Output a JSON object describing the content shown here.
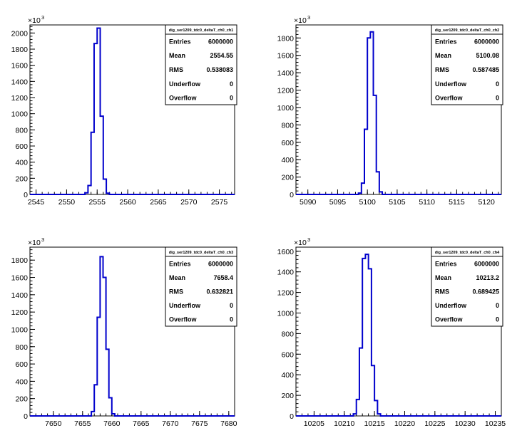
{
  "page_title": "",
  "chart_data": [
    {
      "type": "histogram",
      "title": "dig_ser1209_tdc0_deltaT_ch0_ch1",
      "xlim": [
        2544,
        2577.5
      ],
      "ylim": [
        0,
        2100
      ],
      "y_multiplier_label": "×10",
      "y_multiplier_exp": "3",
      "xticks": [
        2545,
        2550,
        2555,
        2560,
        2565,
        2570,
        2575
      ],
      "yticks": [
        0,
        200,
        400,
        600,
        800,
        1000,
        1200,
        1400,
        1600,
        1800,
        2000
      ],
      "bin_width": 0.5,
      "bins": [
        {
          "x": 2553.0,
          "y": 20
        },
        {
          "x": 2553.5,
          "y": 110
        },
        {
          "x": 2554.0,
          "y": 770
        },
        {
          "x": 2554.5,
          "y": 1870
        },
        {
          "x": 2555.0,
          "y": 2060
        },
        {
          "x": 2555.5,
          "y": 970
        },
        {
          "x": 2556.0,
          "y": 190
        },
        {
          "x": 2556.5,
          "y": 15
        }
      ],
      "stats": [
        {
          "label": "Entries",
          "value": "6000000"
        },
        {
          "label": "Mean",
          "value": "2554.55"
        },
        {
          "label": "RMS",
          "value": "0.538083"
        },
        {
          "label": "Underflow",
          "value": "0"
        },
        {
          "label": "Overflow",
          "value": "0"
        }
      ]
    },
    {
      "type": "histogram",
      "title": "dig_ser1209_tdc0_deltaT_ch0_ch2",
      "xlim": [
        5088,
        5122.5
      ],
      "ylim": [
        0,
        1950
      ],
      "y_multiplier_label": "×10",
      "y_multiplier_exp": "3",
      "xticks": [
        5090,
        5095,
        5100,
        5105,
        5110,
        5115,
        5120
      ],
      "yticks": [
        0,
        200,
        400,
        600,
        800,
        1000,
        1200,
        1400,
        1600,
        1800
      ],
      "bin_width": 0.5,
      "bins": [
        {
          "x": 5098.5,
          "y": 15
        },
        {
          "x": 5099.0,
          "y": 130
        },
        {
          "x": 5099.5,
          "y": 750
        },
        {
          "x": 5100.0,
          "y": 1800
        },
        {
          "x": 5100.5,
          "y": 1870
        },
        {
          "x": 5101.0,
          "y": 1140
        },
        {
          "x": 5101.5,
          "y": 260
        },
        {
          "x": 5102.0,
          "y": 30
        }
      ],
      "stats": [
        {
          "label": "Entries",
          "value": "6000000"
        },
        {
          "label": "Mean",
          "value": "5100.08"
        },
        {
          "label": "RMS",
          "value": "0.587485"
        },
        {
          "label": "Underflow",
          "value": "0"
        },
        {
          "label": "Overflow",
          "value": "0"
        }
      ]
    },
    {
      "type": "histogram",
      "title": "dig_ser1209_tdc0_deltaT_ch0_ch3",
      "xlim": [
        7646,
        7681
      ],
      "ylim": [
        0,
        1950
      ],
      "y_multiplier_label": "×10",
      "y_multiplier_exp": "3",
      "xticks": [
        7650,
        7655,
        7660,
        7665,
        7670,
        7675,
        7680
      ],
      "yticks": [
        0,
        200,
        400,
        600,
        800,
        1000,
        1200,
        1400,
        1600,
        1800
      ],
      "bin_width": 0.5,
      "bins": [
        {
          "x": 7656.5,
          "y": 50
        },
        {
          "x": 7657.0,
          "y": 360
        },
        {
          "x": 7657.5,
          "y": 1140
        },
        {
          "x": 7658.0,
          "y": 1840
        },
        {
          "x": 7658.5,
          "y": 1600
        },
        {
          "x": 7659.0,
          "y": 770
        },
        {
          "x": 7659.5,
          "y": 210
        },
        {
          "x": 7660.0,
          "y": 25
        }
      ],
      "stats": [
        {
          "label": "Entries",
          "value": "6000000"
        },
        {
          "label": "Mean",
          "value": "7658.4"
        },
        {
          "label": "RMS",
          "value": "0.632821"
        },
        {
          "label": "Underflow",
          "value": "0"
        },
        {
          "label": "Overflow",
          "value": "0"
        }
      ]
    },
    {
      "type": "histogram",
      "title": "dig_ser1209_tdc0_deltaT_ch0_ch4",
      "xlim": [
        10202,
        10236
      ],
      "ylim": [
        0,
        1640
      ],
      "y_multiplier_label": "×10",
      "y_multiplier_exp": "3",
      "xticks": [
        10205,
        10210,
        10215,
        10220,
        10225,
        10230,
        10235
      ],
      "yticks": [
        0,
        200,
        400,
        600,
        800,
        1000,
        1200,
        1400,
        1600
      ],
      "bin_width": 0.5,
      "bins": [
        {
          "x": 10211.5,
          "y": 20
        },
        {
          "x": 10212.0,
          "y": 160
        },
        {
          "x": 10212.5,
          "y": 660
        },
        {
          "x": 10213.0,
          "y": 1530
        },
        {
          "x": 10213.5,
          "y": 1570
        },
        {
          "x": 10214.0,
          "y": 1430
        },
        {
          "x": 10214.5,
          "y": 490
        },
        {
          "x": 10215.0,
          "y": 150
        },
        {
          "x": 10215.5,
          "y": 20
        }
      ],
      "stats": [
        {
          "label": "Entries",
          "value": "6000000"
        },
        {
          "label": "Mean",
          "value": "10213.2"
        },
        {
          "label": "RMS",
          "value": "0.689425"
        },
        {
          "label": "Underflow",
          "value": "0"
        },
        {
          "label": "Overflow",
          "value": "0"
        }
      ]
    }
  ]
}
